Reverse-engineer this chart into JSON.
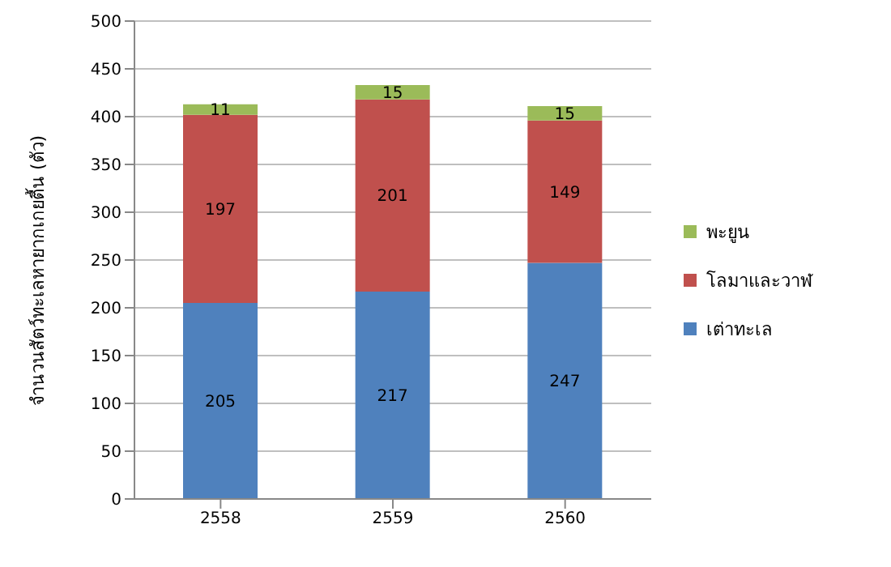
{
  "chart_data": {
    "type": "bar",
    "ylabel": "จำนวนสัตว์ทะเลหายากเกยตื้น (ตัว)",
    "categories": [
      "2558",
      "2559",
      "2560"
    ],
    "series": [
      {
        "name": "เต่าทะเล",
        "color": "#4f81bd",
        "values": [
          205,
          217,
          247
        ]
      },
      {
        "name": "โลมาและวาฬ",
        "color": "#c0504d",
        "values": [
          197,
          201,
          149
        ]
      },
      {
        "name": "พะยูน",
        "color": "#9bbb59",
        "values": [
          11,
          15,
          15
        ]
      }
    ],
    "stacked": true,
    "data_labels": true,
    "ylim": [
      0,
      500
    ],
    "yticks": [
      0,
      50,
      100,
      150,
      200,
      250,
      300,
      350,
      400,
      450,
      500
    ],
    "grid": "y",
    "legend": "right"
  }
}
